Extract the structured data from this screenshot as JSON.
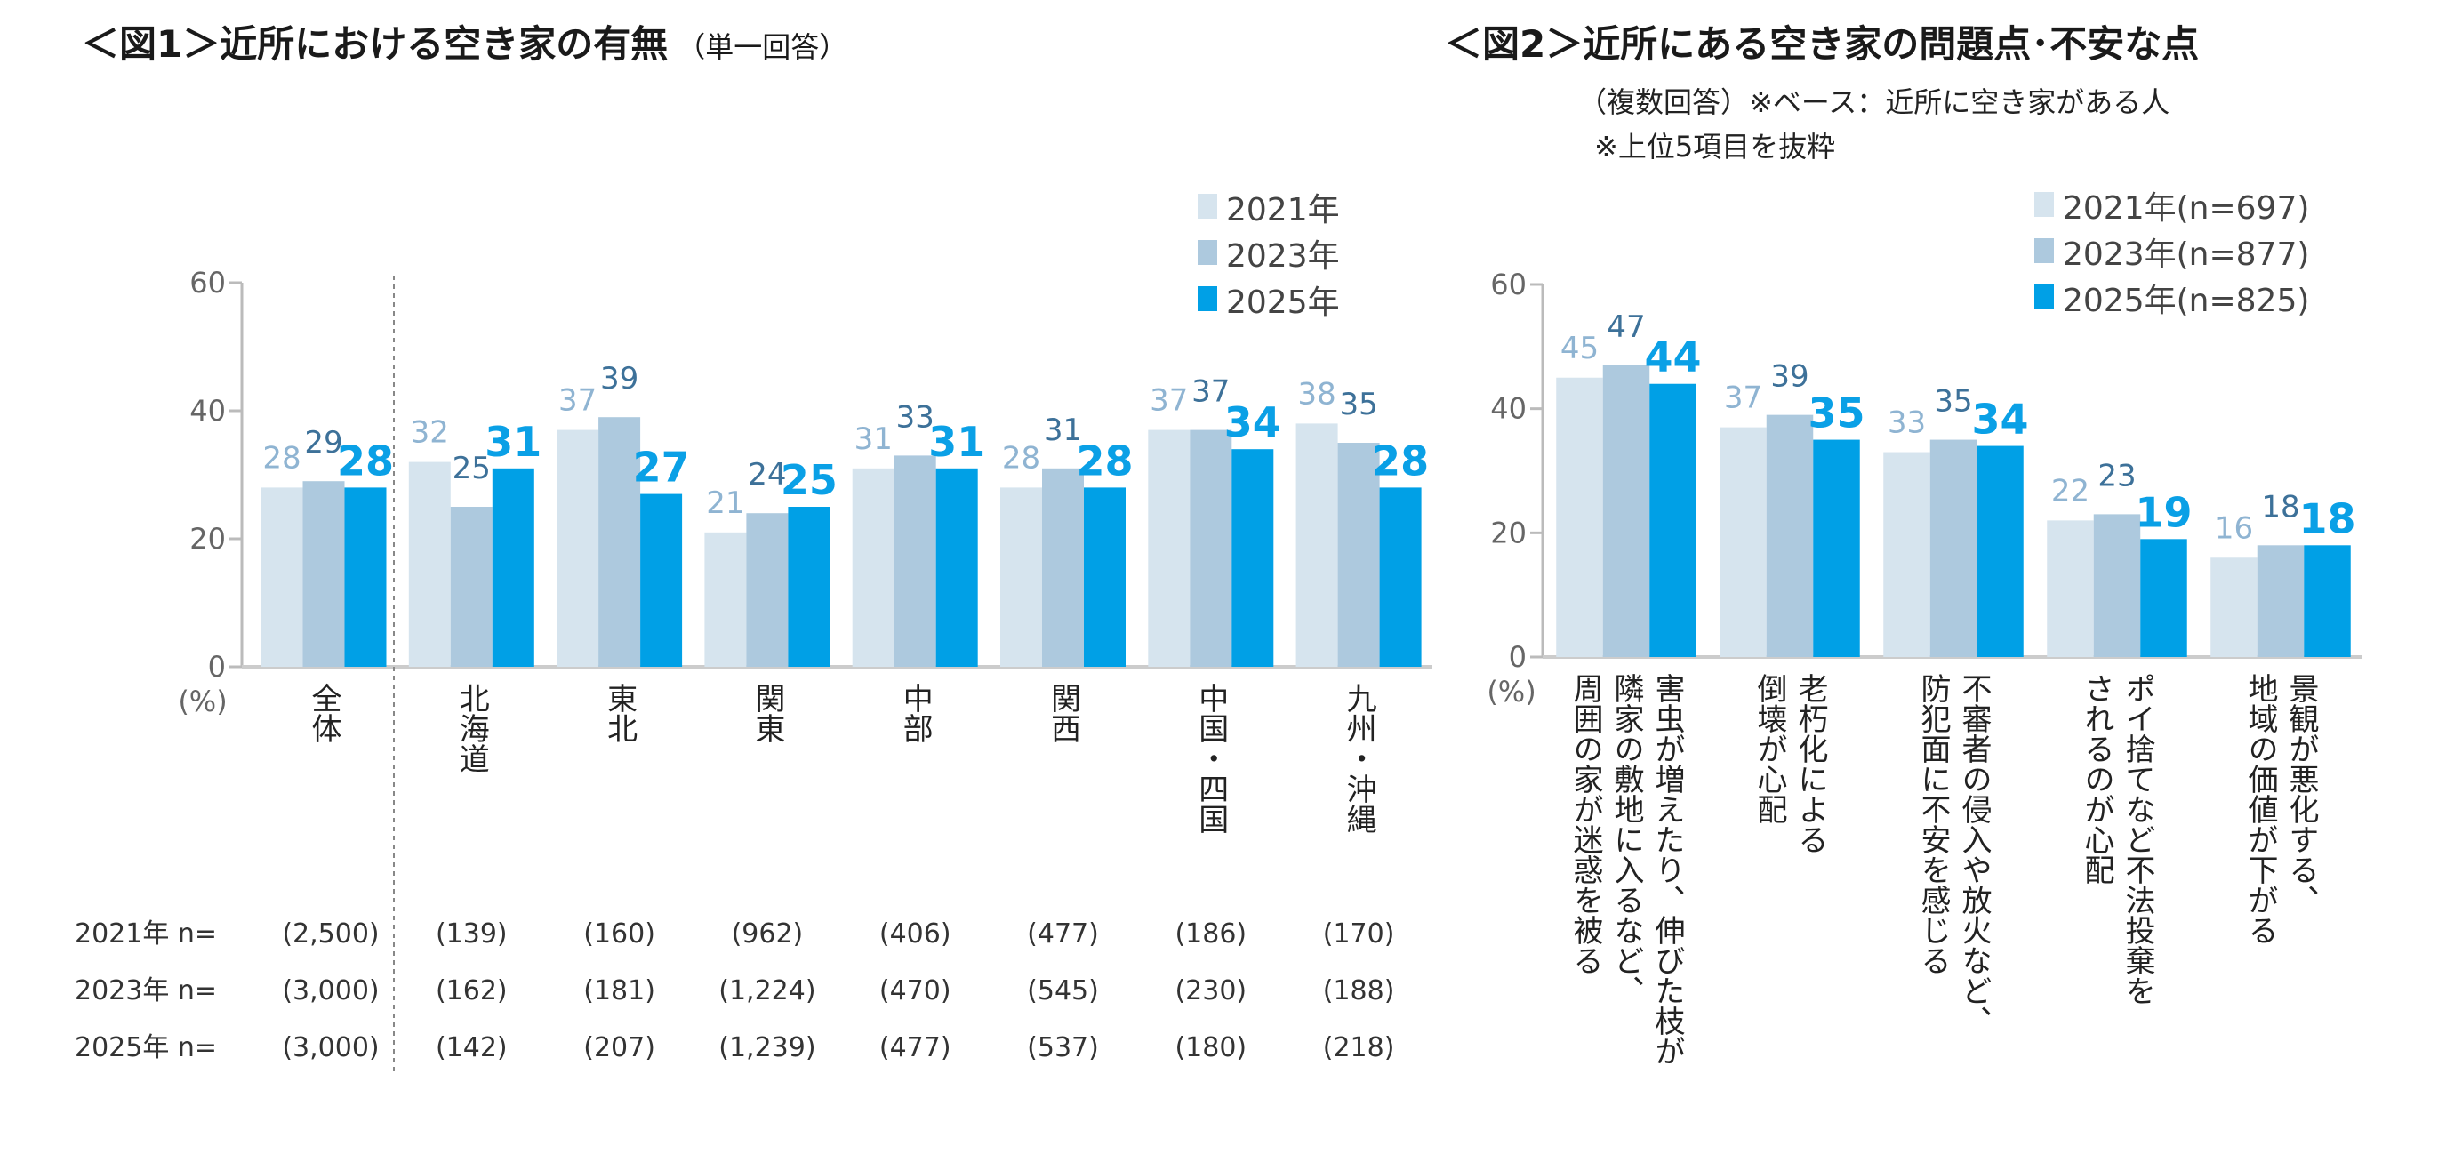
{
  "chart_data": [
    {
      "type": "bar",
      "title": "＜図1＞近所における空き家の有無",
      "subtitle": "（単一回答）",
      "ylabel": "(%)",
      "ylim": [
        0,
        60
      ],
      "yticks": [
        "0",
        "20",
        "40",
        "60"
      ],
      "categories": [
        "全体",
        "北海道",
        "東北",
        "関東",
        "中部",
        "関西",
        "中国・四国",
        "九州・沖縄"
      ],
      "series": [
        {
          "name": "2021年",
          "color": "#d6e4ee",
          "label_color": "#8fb4d2",
          "values": [
            28,
            32,
            37,
            21,
            31,
            28,
            37,
            38
          ]
        },
        {
          "name": "2023年",
          "color": "#adc9de",
          "label_color": "#3d7199",
          "values": [
            29,
            25,
            39,
            24,
            33,
            31,
            37,
            35
          ]
        },
        {
          "name": "2025年",
          "color": "#00a0e6",
          "label_color": "#0aa0e6",
          "values": [
            28,
            31,
            27,
            25,
            31,
            28,
            34,
            28
          ]
        }
      ],
      "legend_position": "top-right",
      "n_table": [
        {
          "label": "2021年 n=",
          "values": [
            "(2,500)",
            "(139)",
            "(160)",
            "(962)",
            "(406)",
            "(477)",
            "(186)",
            "(170)"
          ]
        },
        {
          "label": "2023年 n=",
          "values": [
            "(3,000)",
            "(162)",
            "(181)",
            "(1,224)",
            "(470)",
            "(545)",
            "(230)",
            "(188)"
          ]
        },
        {
          "label": "2025年 n=",
          "values": [
            "(3,000)",
            "(142)",
            "(207)",
            "(1,239)",
            "(477)",
            "(537)",
            "(180)",
            "(218)"
          ]
        }
      ]
    },
    {
      "type": "bar",
      "title": "＜図2＞近所にある空き家の問題点･不安な点",
      "notes": [
        "（複数回答）※ベース：近所に空き家がある人",
        "※上位5項目を抜粋"
      ],
      "ylabel": "(%)",
      "ylim": [
        0,
        60
      ],
      "yticks": [
        "0",
        "20",
        "40",
        "60"
      ],
      "categories": [
        "害虫が増えたり、伸びた枝が\n隣家の敷地に入るなど、\n周囲の家が迷惑を被る",
        "老朽化による\n倒壊が心配",
        "不審者の侵入や放火など、\n防犯面に不安を感じる",
        "ポイ捨てなど不法投棄を\nされるのが心配",
        "景観が悪化する、\n地域の価値が下がる"
      ],
      "series": [
        {
          "name": "2021年(n=697)",
          "color": "#d6e4ee",
          "label_color": "#8fb4d2",
          "values": [
            45,
            37,
            33,
            22,
            16
          ]
        },
        {
          "name": "2023年(n=877)",
          "color": "#adc9de",
          "label_color": "#3d7199",
          "values": [
            47,
            39,
            35,
            23,
            18
          ]
        },
        {
          "name": "2025年(n=825)",
          "color": "#00a0e6",
          "label_color": "#0aa0e6",
          "values": [
            44,
            35,
            34,
            19,
            18
          ]
        }
      ],
      "legend_position": "top-right"
    }
  ]
}
